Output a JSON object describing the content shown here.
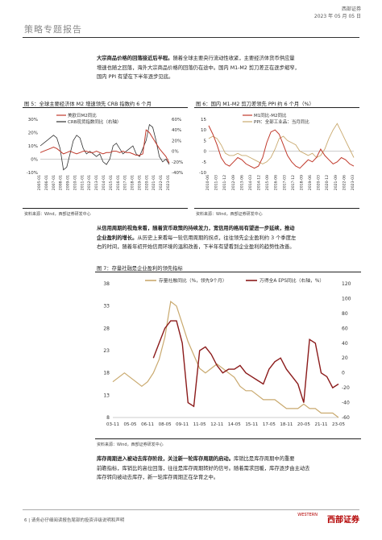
{
  "header": {
    "title": "策略专题报告",
    "company": "西部证券",
    "date": "2023 年 05 月 05 日"
  },
  "para1": {
    "bold": "大宗商品价格的回落接近后半程。",
    "text": "随着全球主要央行流动性收紧，主要经济体货币供应量增速也随之回落，海外大宗商品价格的回落仍在途中。国内 M1-M2 剪刀差正在逐步缩窄，国内 PPI 有望在下半年逐步见底。",
    "lines": [
      [
        "大宗商品价格的回落接近后半程。",
        "随着全球主要央行流动性收紧，主要经济体货币供应量"
      ],
      [
        "",
        "增速也随之回落，海外大宗商品价格的回落仍在途中。国内 M1-M2 剪刀差正在逐步缩窄，"
      ],
      [
        "",
        "国内 PPI 有望在下半年逐步见底。"
      ]
    ]
  },
  "fig5": {
    "caption": "图 5：全球主要经济体 M2 增速领先 CRB 指数约 6 个月",
    "source": "资料来源：Wind，西部证券研发中心",
    "chart_data": {
      "type": "line",
      "series": [
        {
          "name": "美欧日M2同比",
          "color": "#c0392b"
        },
        {
          "name": "CRB现货指数同比（右轴）",
          "color": "#333333"
        }
      ],
      "yleft_ticks": [
        "30%",
        "20%",
        "10%",
        "0%",
        "-10%"
      ],
      "yright_ticks": [
        "60%",
        "40%",
        "20%",
        "0%",
        "-20%",
        "-40%"
      ],
      "x_ticks": [
        "2005-01",
        "2006-01",
        "2007-01",
        "2008-01",
        "2009-01",
        "2010-01",
        "2011-01",
        "2012-01",
        "2013-01",
        "2014-01",
        "2015-01",
        "2016-01",
        "2017-01",
        "2018-01",
        "2019-01",
        "2020-01",
        "2021-01",
        "2022-01",
        "2023-01"
      ],
      "m2": [
        5,
        6,
        7,
        8,
        9,
        8,
        6,
        4,
        5,
        6,
        5,
        4,
        5,
        6,
        6,
        5,
        5,
        6,
        5,
        4,
        5,
        5,
        6,
        6,
        5,
        6,
        5,
        5,
        4,
        3,
        3,
        4,
        22,
        20,
        16,
        12,
        8,
        5,
        2,
        -3
      ],
      "crb": [
        10,
        15,
        20,
        25,
        30,
        25,
        5,
        -35,
        -30,
        -5,
        20,
        30,
        25,
        5,
        -5,
        0,
        -5,
        -10,
        -5,
        -20,
        -25,
        -15,
        10,
        15,
        5,
        -5,
        0,
        5,
        10,
        -5,
        -10,
        5,
        20,
        50,
        45,
        20,
        -10,
        -20,
        -15,
        -25
      ]
    }
  },
  "fig6": {
    "caption": "图 6：国内 M1-M2 剪刀差领先 PPI 约 6 个月（%）",
    "source": "资料来源：Wind，西部证券研发中心",
    "chart_data": {
      "type": "line",
      "series": [
        {
          "name": "M1同比-M2同比",
          "color": "#c0392b"
        },
        {
          "name": "PPI：全部工业品：当月同比",
          "color": "#c9a96e"
        }
      ],
      "y_ticks": [
        "15",
        "10",
        "5",
        "0",
        "-5",
        "-10"
      ],
      "x_ticks": [
        "2010-06",
        "2011-03",
        "2011-12",
        "2012-09",
        "2013-06",
        "2014-03",
        "2014-12",
        "2015-09",
        "2016-06",
        "2017-03",
        "2017-12",
        "2018-09",
        "2019-06",
        "2020-03",
        "2020-12",
        "2021-09",
        "2022-06",
        "2023-03"
      ],
      "m1m2": [
        12,
        8,
        3,
        -3,
        -6,
        -7,
        -5,
        -3,
        -4,
        -6,
        -7,
        -8,
        -7,
        -3,
        4,
        9,
        10,
        8,
        3,
        -2,
        -5,
        -7,
        -8,
        -6,
        -4,
        -5,
        -3,
        1,
        -2,
        -4,
        -6,
        -5,
        -3,
        -4,
        -6,
        -7
      ],
      "ppi": [
        6,
        7,
        6,
        3,
        -1,
        -2,
        -2,
        -1,
        -2,
        -2,
        -3,
        -4,
        -5,
        -6,
        -5,
        -3,
        1,
        6,
        7,
        5,
        4,
        3,
        0,
        -1,
        -2,
        -1,
        -3,
        -2,
        1,
        6,
        10,
        13,
        9,
        5,
        1,
        -3
      ]
    }
  },
  "para2": {
    "lines": [
      [
        "从信用周期的视角来看，随着货币政策的持续发力，宽信用的格局有望进一步延续，推动",
        ""
      ],
      [
        "企业盈利的增长。",
        "从历史上来看每一轮信用周期的拐点，往往领先企业盈利约 3 个季度左"
      ],
      [
        "",
        "右的时间，随着年初开始信用环境的温和改善，下半年有望看到企业盈利的趋势性改善。"
      ]
    ]
  },
  "fig7": {
    "caption": "图 7：存量社融是企业盈利的领先指标",
    "source": "资料来源：Wind，西部证券研发中心",
    "chart_data": {
      "type": "line",
      "series": [
        {
          "name": "存量社融同比（%，领先9个月）",
          "color": "#c9a96e"
        },
        {
          "name": "万得全A EPS同比（右轴，%）",
          "color": "#8b1a1a"
        }
      ],
      "yleft_ticks": [
        "38",
        "33",
        "28",
        "23",
        "18",
        "13",
        "8"
      ],
      "yright_ticks": [
        "120",
        "100",
        "80",
        "60",
        "40",
        "20",
        "0",
        "-20",
        "-40",
        "-60"
      ],
      "x_ticks": [
        "03-11",
        "05-05",
        "06-11",
        "08-05",
        "09-11",
        "11-05",
        "12-11",
        "14-05",
        "15-11",
        "17-05",
        "18-11",
        "20-05",
        "21-11",
        "23-05"
      ],
      "tsf": [
        16,
        17,
        18,
        17,
        16,
        15,
        16,
        18,
        21,
        26,
        34,
        33,
        29,
        25,
        22,
        19,
        18,
        19,
        20,
        19,
        18,
        17,
        15,
        14,
        14,
        13,
        12,
        12,
        12,
        11,
        10,
        10,
        10,
        11,
        10,
        10,
        9,
        9,
        9,
        8
      ],
      "eps": [
        null,
        null,
        null,
        null,
        null,
        null,
        null,
        20,
        40,
        60,
        70,
        70,
        40,
        -40,
        -45,
        30,
        35,
        25,
        10,
        0,
        5,
        5,
        10,
        0,
        -5,
        -10,
        -15,
        5,
        15,
        20,
        5,
        -5,
        -15,
        -40,
        45,
        40,
        0,
        -5,
        -20,
        -15
      ]
    }
  },
  "para3": {
    "lines": [
      [
        "库存周期进入被动去库存阶段，关注新一轮库存周期的启动。",
        "库销比是库存周期中的重要"
      ],
      [
        "",
        "前瞻指标，库销比的高位回落，往往是库存周期转好的信号。随着需求回暖，库存逐步由主动去"
      ],
      [
        "",
        "库存转向被动去库存，新一轮库存周期正在孕育之中。"
      ]
    ]
  },
  "footer": {
    "text": "6 | 请务必仔细阅读报告尾部的投资评级说明和声明",
    "logo": "西部证券",
    "logo_small": "WESTERN"
  }
}
